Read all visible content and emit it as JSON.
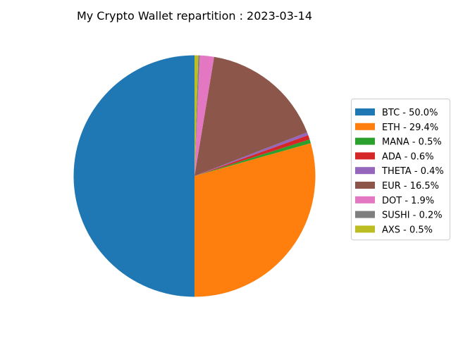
{
  "chart_data": {
    "type": "pie",
    "title": "My Crypto Wallet repartition : 2023-03-14",
    "start_angle_deg": 90,
    "direction": "counterclockwise",
    "legend_placement": "center-right",
    "slices": [
      {
        "label": "BTC - 50.0%",
        "value": 50.0,
        "color": "#1f77b4"
      },
      {
        "label": "ETH - 29.4%",
        "value": 29.4,
        "color": "#ff7f0e"
      },
      {
        "label": "MANA - 0.5%",
        "value": 0.5,
        "color": "#2ca02c"
      },
      {
        "label": "ADA - 0.6%",
        "value": 0.6,
        "color": "#d62728"
      },
      {
        "label": "THETA - 0.4%",
        "value": 0.4,
        "color": "#9467bd"
      },
      {
        "label": "EUR - 16.5%",
        "value": 16.5,
        "color": "#8c564b"
      },
      {
        "label": "DOT - 1.9%",
        "value": 1.9,
        "color": "#e377c2"
      },
      {
        "label": "SUSHI - 0.2%",
        "value": 0.2,
        "color": "#7f7f7f"
      },
      {
        "label": "AXS - 0.5%",
        "value": 0.5,
        "color": "#bcbd22"
      }
    ]
  }
}
